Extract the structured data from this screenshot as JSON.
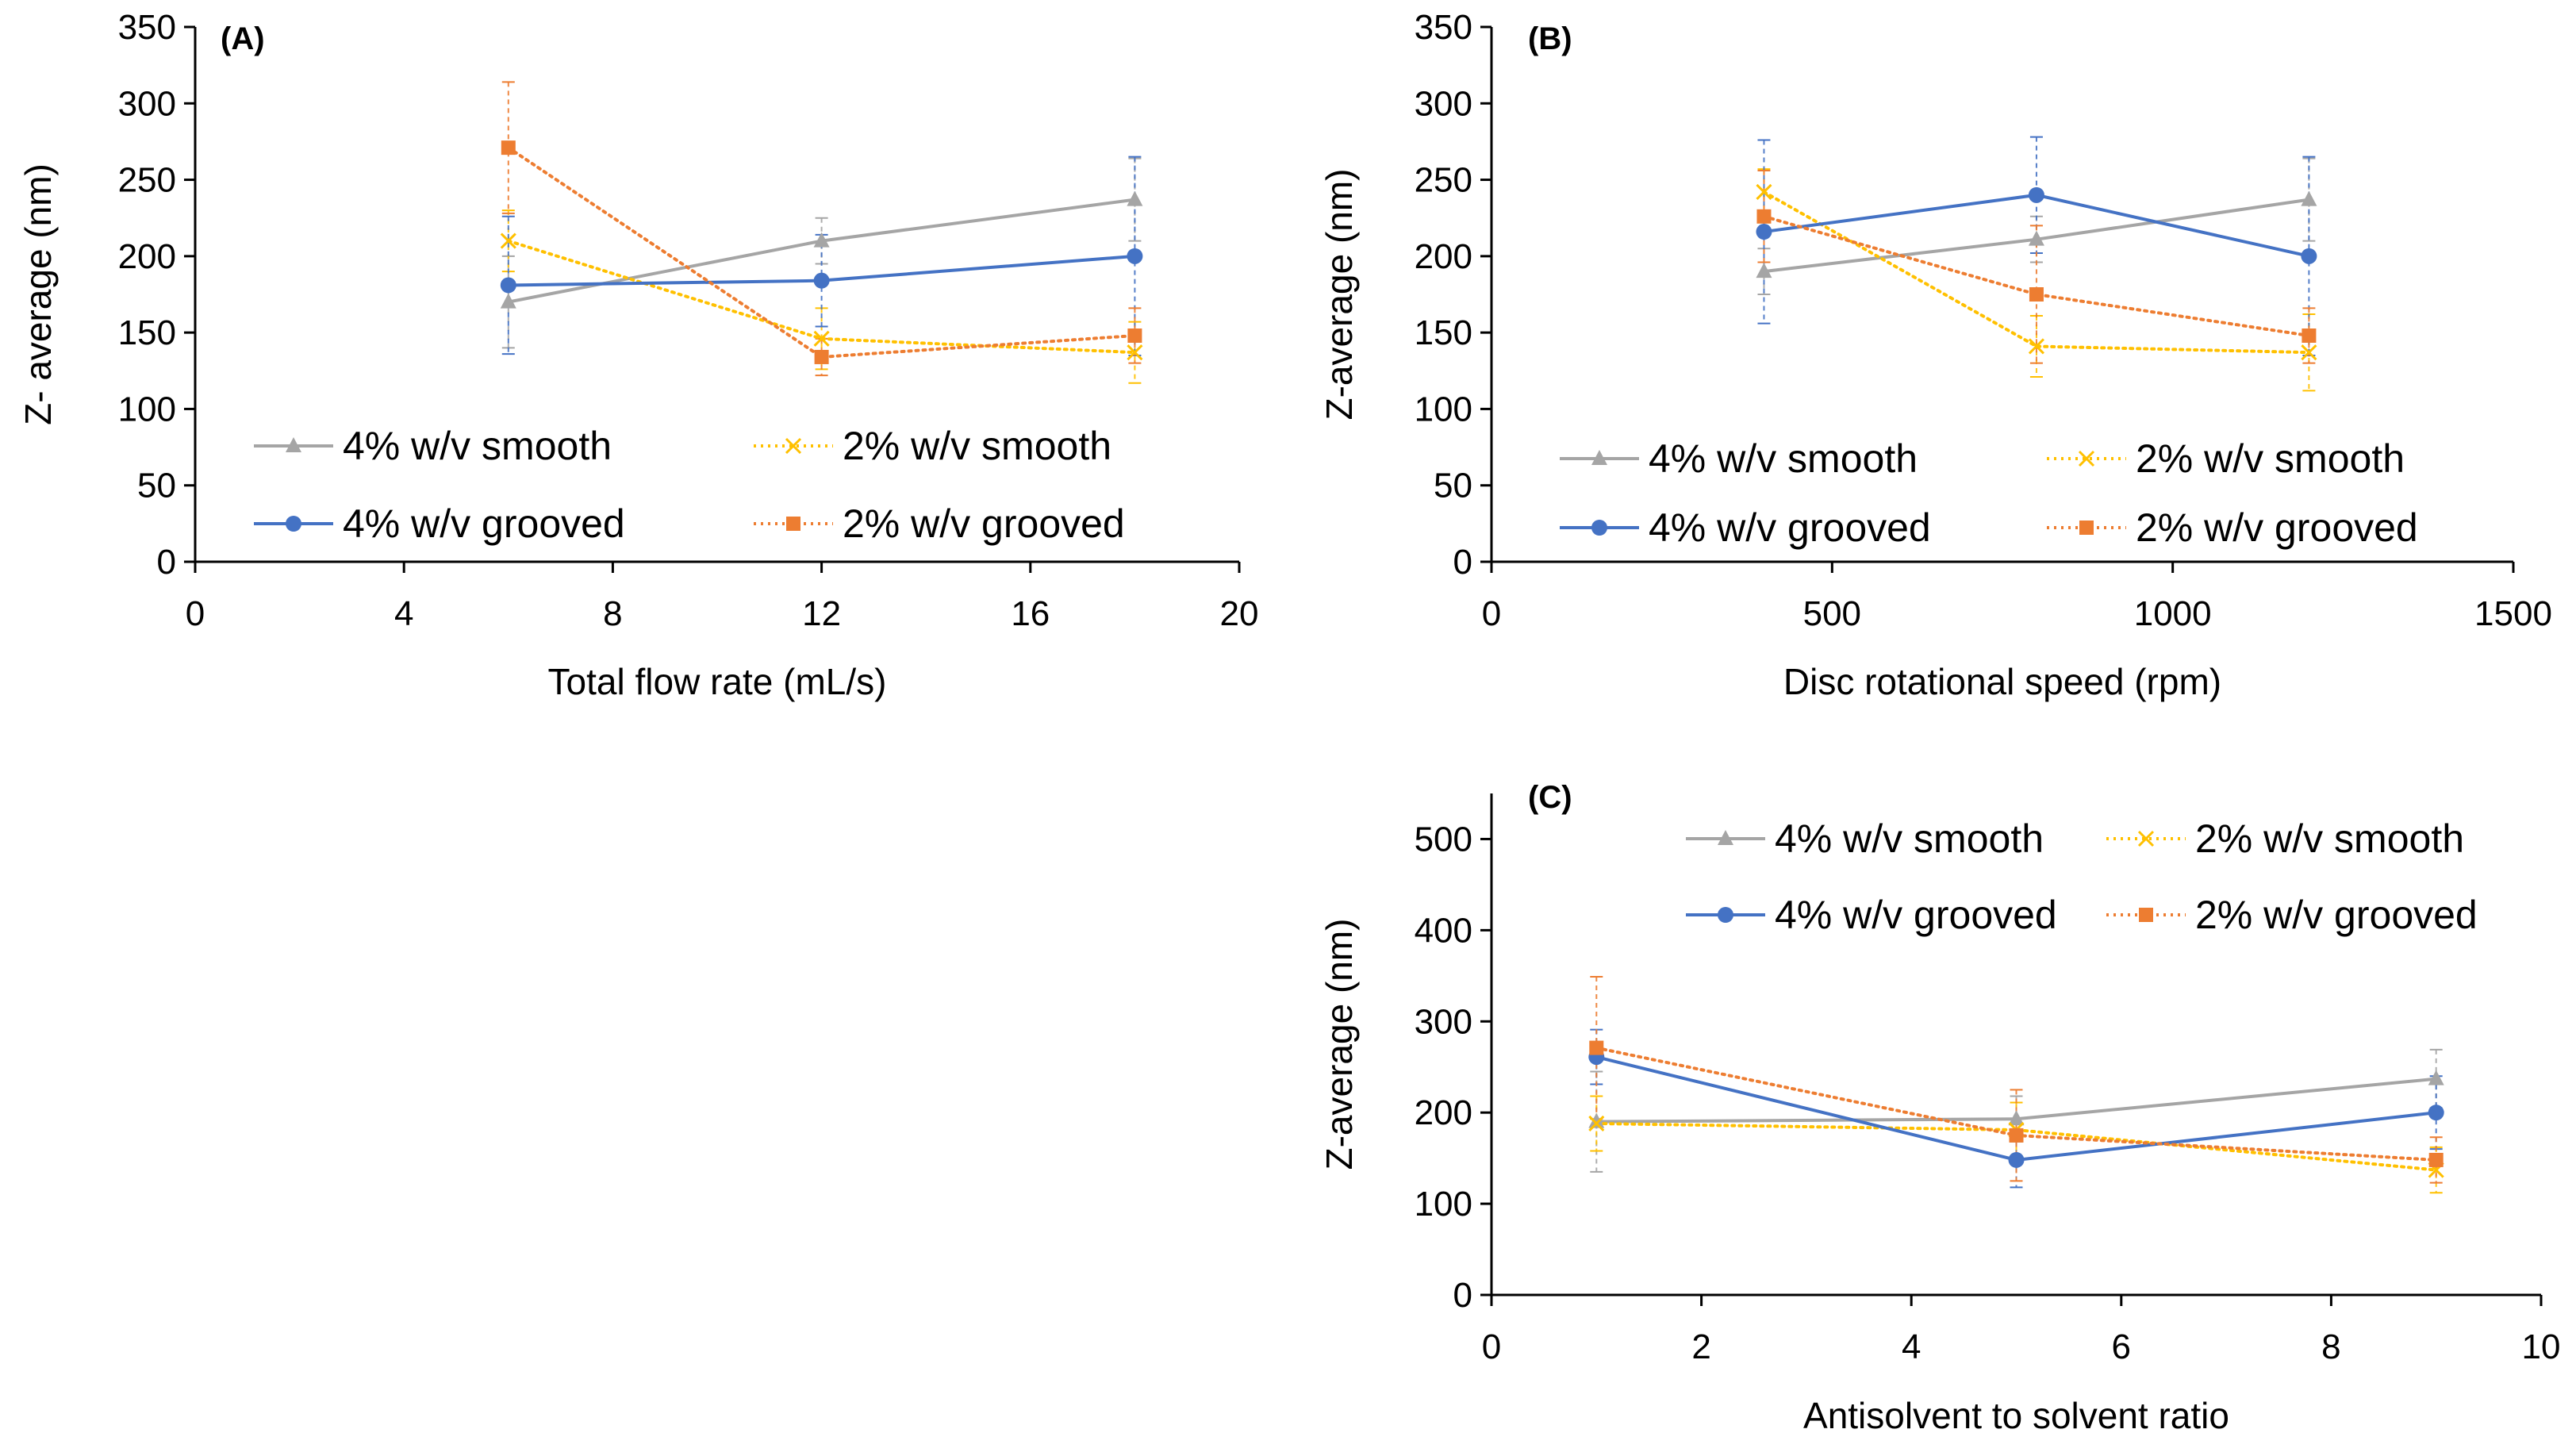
{
  "chart_data": [
    {
      "type": "line",
      "panel": "(A)",
      "xlabel": "Total flow rate (mL/s)",
      "ylabel": "Z- average (nm)",
      "xlim": [
        0,
        20
      ],
      "ylim": [
        0,
        350
      ],
      "xticks": [
        0,
        4,
        8,
        12,
        16,
        20
      ],
      "yticks": [
        0,
        50,
        100,
        150,
        200,
        250,
        300,
        350
      ],
      "x": [
        6,
        12,
        18
      ],
      "legend_placement": "bottom-center, two columns",
      "series": [
        {
          "name": "4% w/v smooth",
          "values": [
            170,
            210,
            237
          ],
          "errors": [
            30,
            15,
            27
          ],
          "color": "#A5A5A5",
          "marker": "triangle",
          "dash": "solid"
        },
        {
          "name": "2% w/v smooth",
          "values": [
            210,
            146,
            137
          ],
          "errors": [
            20,
            20,
            20
          ],
          "color": "#FFC000",
          "marker": "x",
          "dash": "dotted"
        },
        {
          "name": "4% w/v grooved",
          "values": [
            181,
            184,
            200
          ],
          "errors": [
            45,
            30,
            65
          ],
          "color": "#4472C4",
          "marker": "circle",
          "dash": "solid"
        },
        {
          "name": "2% w/v grooved",
          "values": [
            271,
            134,
            148
          ],
          "errors": [
            43,
            12,
            18
          ],
          "color": "#ED7D31",
          "marker": "square",
          "dash": "dotted"
        }
      ]
    },
    {
      "type": "line",
      "panel": "(B)",
      "xlabel": "Disc rotational speed (rpm)",
      "ylabel": "Z-average (nm)",
      "xlim": [
        0,
        1500
      ],
      "ylim": [
        0,
        350
      ],
      "xticks": [
        0,
        500,
        1000,
        1500
      ],
      "yticks": [
        0,
        50,
        100,
        150,
        200,
        250,
        300,
        350
      ],
      "x": [
        400,
        800,
        1200
      ],
      "legend_placement": "bottom-center, two columns",
      "series": [
        {
          "name": "4% w/v smooth",
          "values": [
            190,
            211,
            237
          ],
          "errors": [
            15,
            15,
            27
          ],
          "color": "#A5A5A5",
          "marker": "triangle",
          "dash": "solid"
        },
        {
          "name": "2% w/v smooth",
          "values": [
            242,
            141,
            137
          ],
          "errors": [
            15,
            20,
            25
          ],
          "color": "#FFC000",
          "marker": "x",
          "dash": "dotted"
        },
        {
          "name": "4% w/v grooved",
          "values": [
            216,
            240,
            200
          ],
          "errors": [
            60,
            38,
            65
          ],
          "color": "#4472C4",
          "marker": "circle",
          "dash": "solid"
        },
        {
          "name": "2% w/v grooved",
          "values": [
            226,
            175,
            148
          ],
          "errors": [
            30,
            45,
            18
          ],
          "color": "#ED7D31",
          "marker": "square",
          "dash": "dotted"
        }
      ]
    },
    {
      "type": "line",
      "panel": "(C)",
      "xlabel": "Antisolvent to solvent ratio",
      "ylabel": "Z-average (nm)",
      "xlim": [
        0,
        10
      ],
      "ylim": [
        0,
        550
      ],
      "xticks": [
        0,
        2,
        4,
        6,
        8,
        10
      ],
      "yticks": [
        0,
        100,
        200,
        300,
        400,
        500
      ],
      "x": [
        1,
        5,
        9
      ],
      "legend_placement": "top-center, two columns",
      "series": [
        {
          "name": "4% w/v smooth",
          "values": [
            190,
            193,
            237
          ],
          "errors": [
            55,
            25,
            32
          ],
          "color": "#A5A5A5",
          "marker": "triangle",
          "dash": "solid"
        },
        {
          "name": "2% w/v smooth",
          "values": [
            188,
            181,
            137
          ],
          "errors": [
            30,
            30,
            25
          ],
          "color": "#FFC000",
          "marker": "x",
          "dash": "dotted"
        },
        {
          "name": "4% w/v grooved",
          "values": [
            261,
            148,
            200
          ],
          "errors": [
            30,
            30,
            40
          ],
          "color": "#4472C4",
          "marker": "circle",
          "dash": "solid"
        },
        {
          "name": "2% w/v grooved",
          "values": [
            271,
            175,
            148
          ],
          "errors": [
            78,
            50,
            25
          ],
          "color": "#ED7D31",
          "marker": "square",
          "dash": "dotted"
        }
      ]
    }
  ]
}
